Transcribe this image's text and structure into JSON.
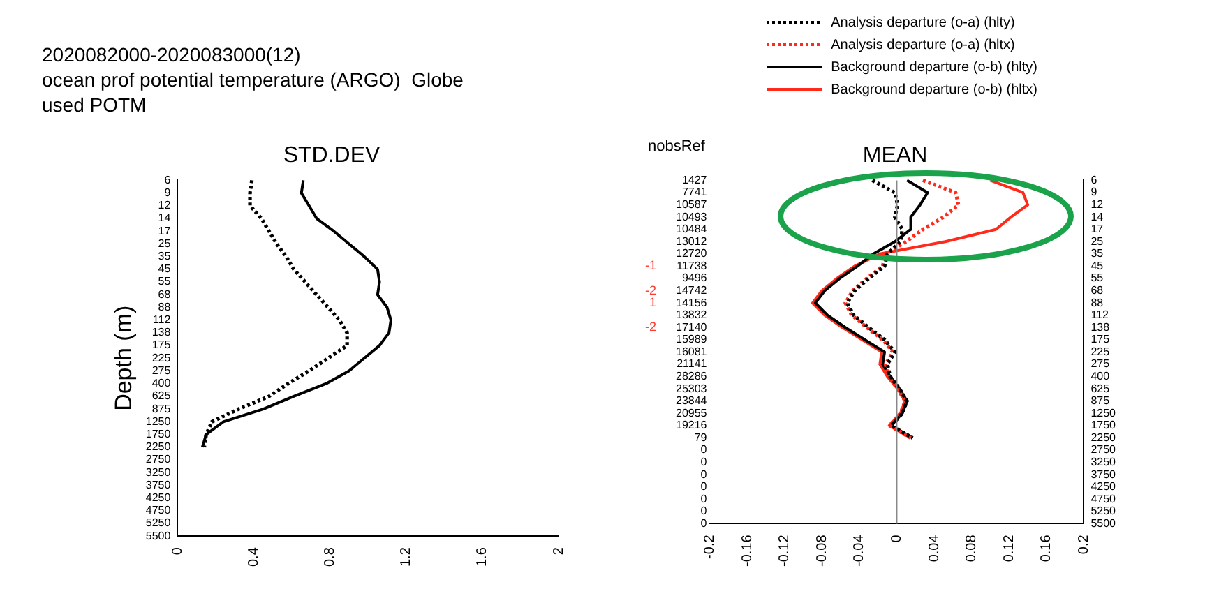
{
  "chart_data": [
    {
      "type": "line",
      "orientation": "horizontal",
      "title": "STD.DEV",
      "ylabel": "Depth (m)",
      "annotations": [
        "2020082000-2020083000(12)",
        "ocean prof potential temperature (ARGO)  Globe",
        "used POTM"
      ],
      "categories": [
        "6",
        "9",
        "12",
        "14",
        "17",
        "25",
        "35",
        "45",
        "55",
        "68",
        "88",
        "112",
        "138",
        "175",
        "225",
        "275",
        "400",
        "625",
        "875",
        "1250",
        "1750",
        "2250",
        "2750",
        "3250",
        "3750",
        "4250",
        "4750",
        "5250",
        "5500"
      ],
      "series": [
        {
          "color": "#000000",
          "line_style": "dotted",
          "values": [
            0.39,
            0.38,
            0.38,
            0.44,
            0.48,
            0.52,
            0.57,
            0.61,
            0.67,
            0.73,
            0.79,
            0.85,
            0.89,
            0.89,
            0.79,
            0.69,
            0.58,
            0.48,
            0.32,
            0.18,
            0.15,
            0.14,
            null,
            null,
            null,
            null,
            null,
            null,
            null
          ]
        },
        {
          "color": "#000000",
          "line_style": "solid",
          "values": [
            0.66,
            0.65,
            0.69,
            0.73,
            0.82,
            0.9,
            0.98,
            1.05,
            1.06,
            1.05,
            1.1,
            1.12,
            1.11,
            1.06,
            0.98,
            0.9,
            0.78,
            0.61,
            0.45,
            0.24,
            0.15,
            0.13,
            null,
            null,
            null,
            null,
            null,
            null,
            null
          ]
        }
      ],
      "xlim": [
        0,
        2
      ],
      "xticks": [
        0,
        0.4,
        0.8,
        1.2,
        1.6,
        2
      ],
      "grid": false,
      "marker": "none"
    },
    {
      "type": "line",
      "orientation": "horizontal",
      "title": "MEAN",
      "annotations": [
        "nobsRef",
        "-1",
        "-2",
        "1",
        "-2"
      ],
      "y2_categories": [
        "1427",
        "7741",
        "10587",
        "10493",
        "10484",
        "13012",
        "12720",
        "11738",
        "9496",
        "14742",
        "14156",
        "13832",
        "17140",
        "15989",
        "16081",
        "21141",
        "28286",
        "25303",
        "23844",
        "20955",
        "19216",
        "79",
        "0",
        "0",
        "0",
        "0",
        "0",
        "0",
        "0"
      ],
      "categories": [
        "6",
        "9",
        "12",
        "14",
        "17",
        "25",
        "35",
        "45",
        "55",
        "68",
        "88",
        "112",
        "138",
        "175",
        "225",
        "275",
        "400",
        "625",
        "875",
        "1250",
        "1750",
        "2250",
        "2750",
        "3250",
        "3750",
        "4250",
        "4750",
        "5250",
        "5500"
      ],
      "series": [
        {
          "name": "Analysis departure (o-a) (hlty)",
          "color": "#000000",
          "line_style": "dotted",
          "values": [
            -0.026,
            -0.002,
            0.001,
            -0.002,
            0.006,
            0.004,
            -0.01,
            -0.013,
            -0.03,
            -0.045,
            -0.053,
            -0.046,
            -0.03,
            -0.013,
            -0.002,
            -0.01,
            -0.007,
            0.003,
            0.011,
            0.006,
            -0.006,
            0.017,
            null,
            null,
            null,
            null,
            null,
            null,
            null
          ]
        },
        {
          "name": "Analysis departure (o-a) (hltx)",
          "color": "#ff2a1a",
          "line_style": "dotted",
          "values": [
            0.028,
            0.063,
            0.066,
            0.05,
            0.028,
            0.01,
            -0.012,
            -0.015,
            -0.032,
            -0.047,
            -0.055,
            -0.048,
            -0.032,
            -0.015,
            -0.004,
            -0.012,
            -0.009,
            0.001,
            0.009,
            0.004,
            -0.008,
            0.015,
            null,
            null,
            null,
            null,
            null,
            null,
            null
          ]
        },
        {
          "name": "Background departure (o-b) (hlty)",
          "color": "#000000",
          "line_style": "solid",
          "values": [
            0.011,
            0.033,
            0.025,
            0.015,
            0.015,
            -0.002,
            -0.025,
            -0.042,
            -0.061,
            -0.077,
            -0.087,
            -0.074,
            -0.055,
            -0.034,
            -0.013,
            -0.015,
            -0.007,
            0.003,
            0.011,
            0.006,
            -0.006,
            0.017,
            null,
            null,
            null,
            null,
            null,
            null,
            null
          ]
        },
        {
          "name": "Background departure (o-b) (hltx)",
          "color": "#ff2a1a",
          "line_style": "solid",
          "values": [
            0.1,
            0.135,
            0.14,
            0.122,
            0.106,
            0.052,
            -0.018,
            -0.045,
            -0.064,
            -0.08,
            -0.09,
            -0.077,
            -0.058,
            -0.037,
            -0.016,
            -0.018,
            -0.01,
            0.001,
            0.009,
            0.004,
            -0.008,
            0.015,
            null,
            null,
            null,
            null,
            null,
            null,
            null
          ]
        }
      ],
      "xlim": [
        -0.2,
        0.2
      ],
      "xticks": [
        -0.2,
        -0.16,
        -0.12,
        -0.08,
        -0.04,
        0,
        0.04,
        0.08,
        0.12,
        0.16,
        0.2
      ],
      "ref_lines": [
        {
          "axis": "x",
          "value": 0,
          "color": "#888888"
        }
      ],
      "grid": false,
      "marker": "none",
      "legend": "top right"
    }
  ]
}
